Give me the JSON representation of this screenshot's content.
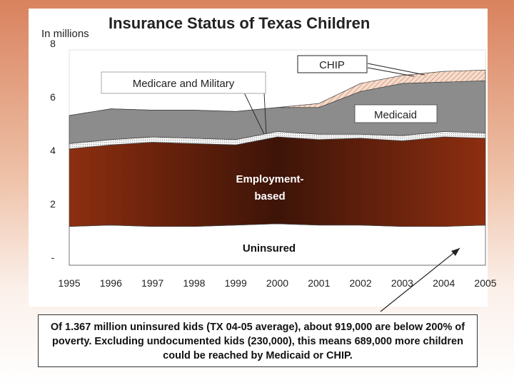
{
  "chart_data": {
    "type": "area",
    "stacked": true,
    "title": "Insurance Status of Texas Children",
    "ylabel": "In millions",
    "x": [
      "1995",
      "1996",
      "1997",
      "1998",
      "1999",
      "2000",
      "2001",
      "2002",
      "2003",
      "2004",
      "2005"
    ],
    "ylim": [
      0,
      8
    ],
    "yticks": [
      {
        "value": 0,
        "label": "-"
      },
      {
        "value": 2,
        "label": "2"
      },
      {
        "value": 4,
        "label": "4"
      },
      {
        "value": 6,
        "label": "6"
      },
      {
        "value": 8,
        "label": "8"
      }
    ],
    "series": [
      {
        "name": "Uninsured",
        "color": "#ffffff",
        "values": [
          1.45,
          1.5,
          1.45,
          1.45,
          1.5,
          1.55,
          1.5,
          1.5,
          1.45,
          1.45,
          1.5
        ]
      },
      {
        "name": "Employment-based",
        "color": "#8a2a0c",
        "values": [
          2.9,
          3.0,
          3.15,
          3.1,
          3.0,
          3.25,
          3.2,
          3.25,
          3.2,
          3.35,
          3.25
        ]
      },
      {
        "name": "Medicare and Military",
        "color": "#e4e4e4",
        "values": [
          0.2,
          0.2,
          0.2,
          0.2,
          0.2,
          0.2,
          0.2,
          0.15,
          0.2,
          0.2,
          0.2
        ]
      },
      {
        "name": "Medicaid",
        "color": "#8c8c8c",
        "values": [
          1.05,
          1.15,
          1.0,
          1.05,
          1.05,
          0.9,
          1.0,
          1.6,
          1.95,
          1.85,
          1.95
        ]
      },
      {
        "name": "CHIP",
        "color": "#f2cbb6",
        "values": [
          0.0,
          0.0,
          0.0,
          0.0,
          0.0,
          0.0,
          0.15,
          0.3,
          0.3,
          0.4,
          0.4
        ]
      }
    ],
    "annotations": {
      "chip": "CHIP",
      "medicare": "Medicare and Military",
      "medicaid": "Medicaid",
      "employment_line1": "Employment-",
      "employment_line2": "based",
      "uninsured": "Uninsured"
    },
    "grid": false,
    "legend": "none"
  },
  "caption": {
    "text": "Of 1.367 million uninsured kids (TX 04-05 average), about 919,000 are below 200% of poverty. Excluding undocumented kids (230,000), this means 689,000 more children could be reached by Medicaid or CHIP."
  }
}
